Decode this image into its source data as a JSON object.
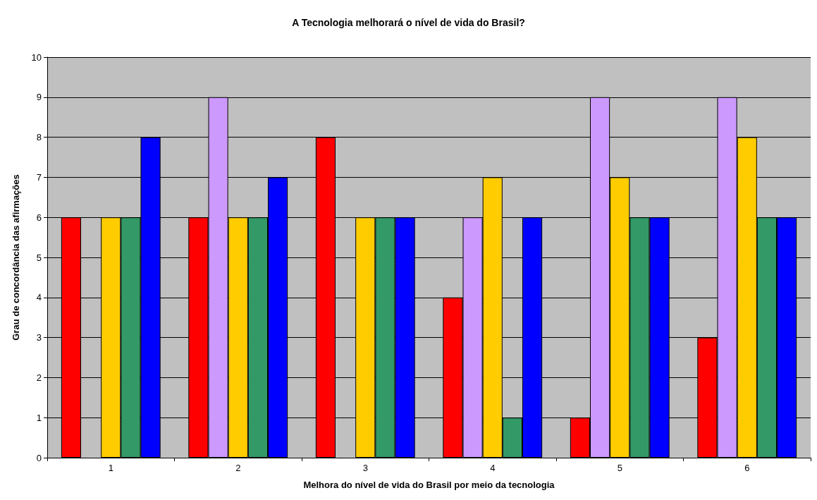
{
  "chart_data": {
    "type": "bar",
    "title": "A Tecnologia melhorará o nível de vida do Brasil?",
    "xlabel": "Melhora do nível de vida do Brasil por meio da tecnologia",
    "ylabel": "Grau de concordância das afirmações",
    "categories": [
      "1",
      "2",
      "3",
      "4",
      "5",
      "6"
    ],
    "series": [
      {
        "color": "#ff0000",
        "values": [
          6,
          6,
          8,
          4,
          1,
          3
        ]
      },
      {
        "color": "#cc99ff",
        "values": [
          null,
          9,
          null,
          6,
          9,
          9
        ]
      },
      {
        "color": "#ffcc00",
        "values": [
          6,
          6,
          6,
          7,
          7,
          8
        ]
      },
      {
        "color": "#339966",
        "values": [
          6,
          6,
          6,
          1,
          6,
          6
        ]
      },
      {
        "color": "#0000ff",
        "values": [
          8,
          7,
          6,
          6,
          6,
          6
        ]
      }
    ],
    "ylim": [
      0,
      10
    ],
    "yticks": [
      0,
      1,
      2,
      3,
      4,
      5,
      6,
      7,
      8,
      9,
      10
    ],
    "grid": "y"
  }
}
